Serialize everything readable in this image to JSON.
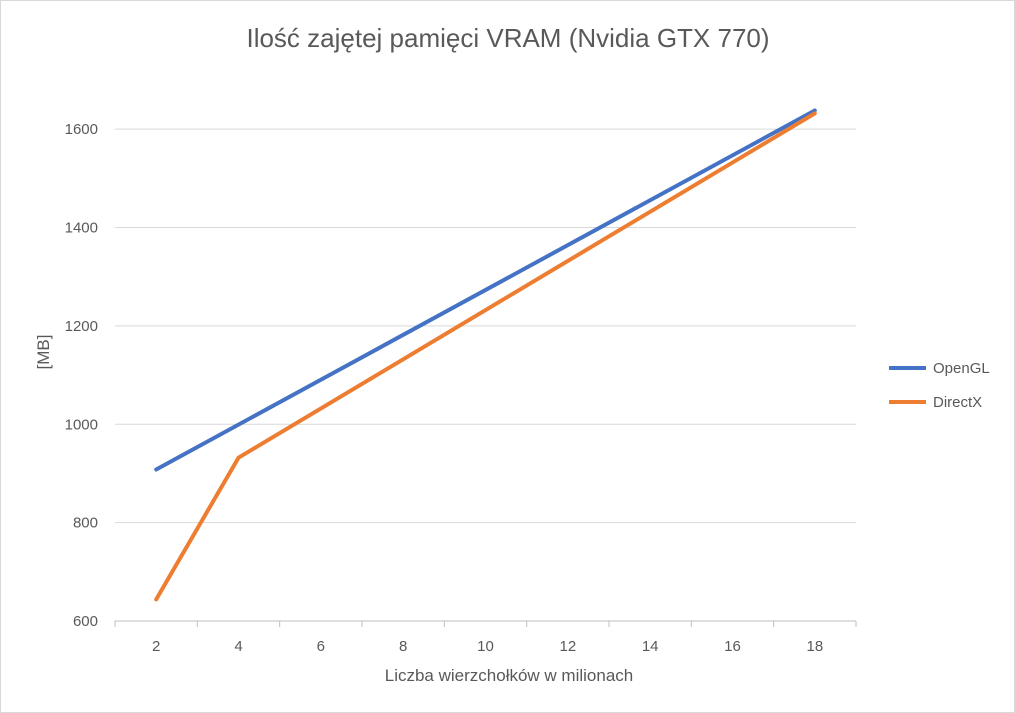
{
  "chart_data": {
    "type": "line",
    "title": "Ilość zajętej pamięci VRAM (Nvidia GTX 770)",
    "xlabel": "Liczba wierzchołków w milionach",
    "ylabel": "[MB]",
    "categories": [
      "2",
      "4",
      "6",
      "8",
      "10",
      "12",
      "14",
      "16",
      "18"
    ],
    "x": [
      2,
      4,
      18
    ],
    "ylim": [
      600,
      1700
    ],
    "yticks": [
      600,
      800,
      1000,
      1200,
      1400,
      1600
    ],
    "grid": true,
    "legend_position": "right",
    "series": [
      {
        "name": "OpenGL",
        "color": "#4472c4",
        "x": [
          2,
          18
        ],
        "values": [
          908,
          1638
        ]
      },
      {
        "name": "DirectX",
        "color": "#ed7d31",
        "x": [
          2,
          4,
          18
        ],
        "values": [
          644,
          932,
          1632
        ]
      }
    ]
  }
}
